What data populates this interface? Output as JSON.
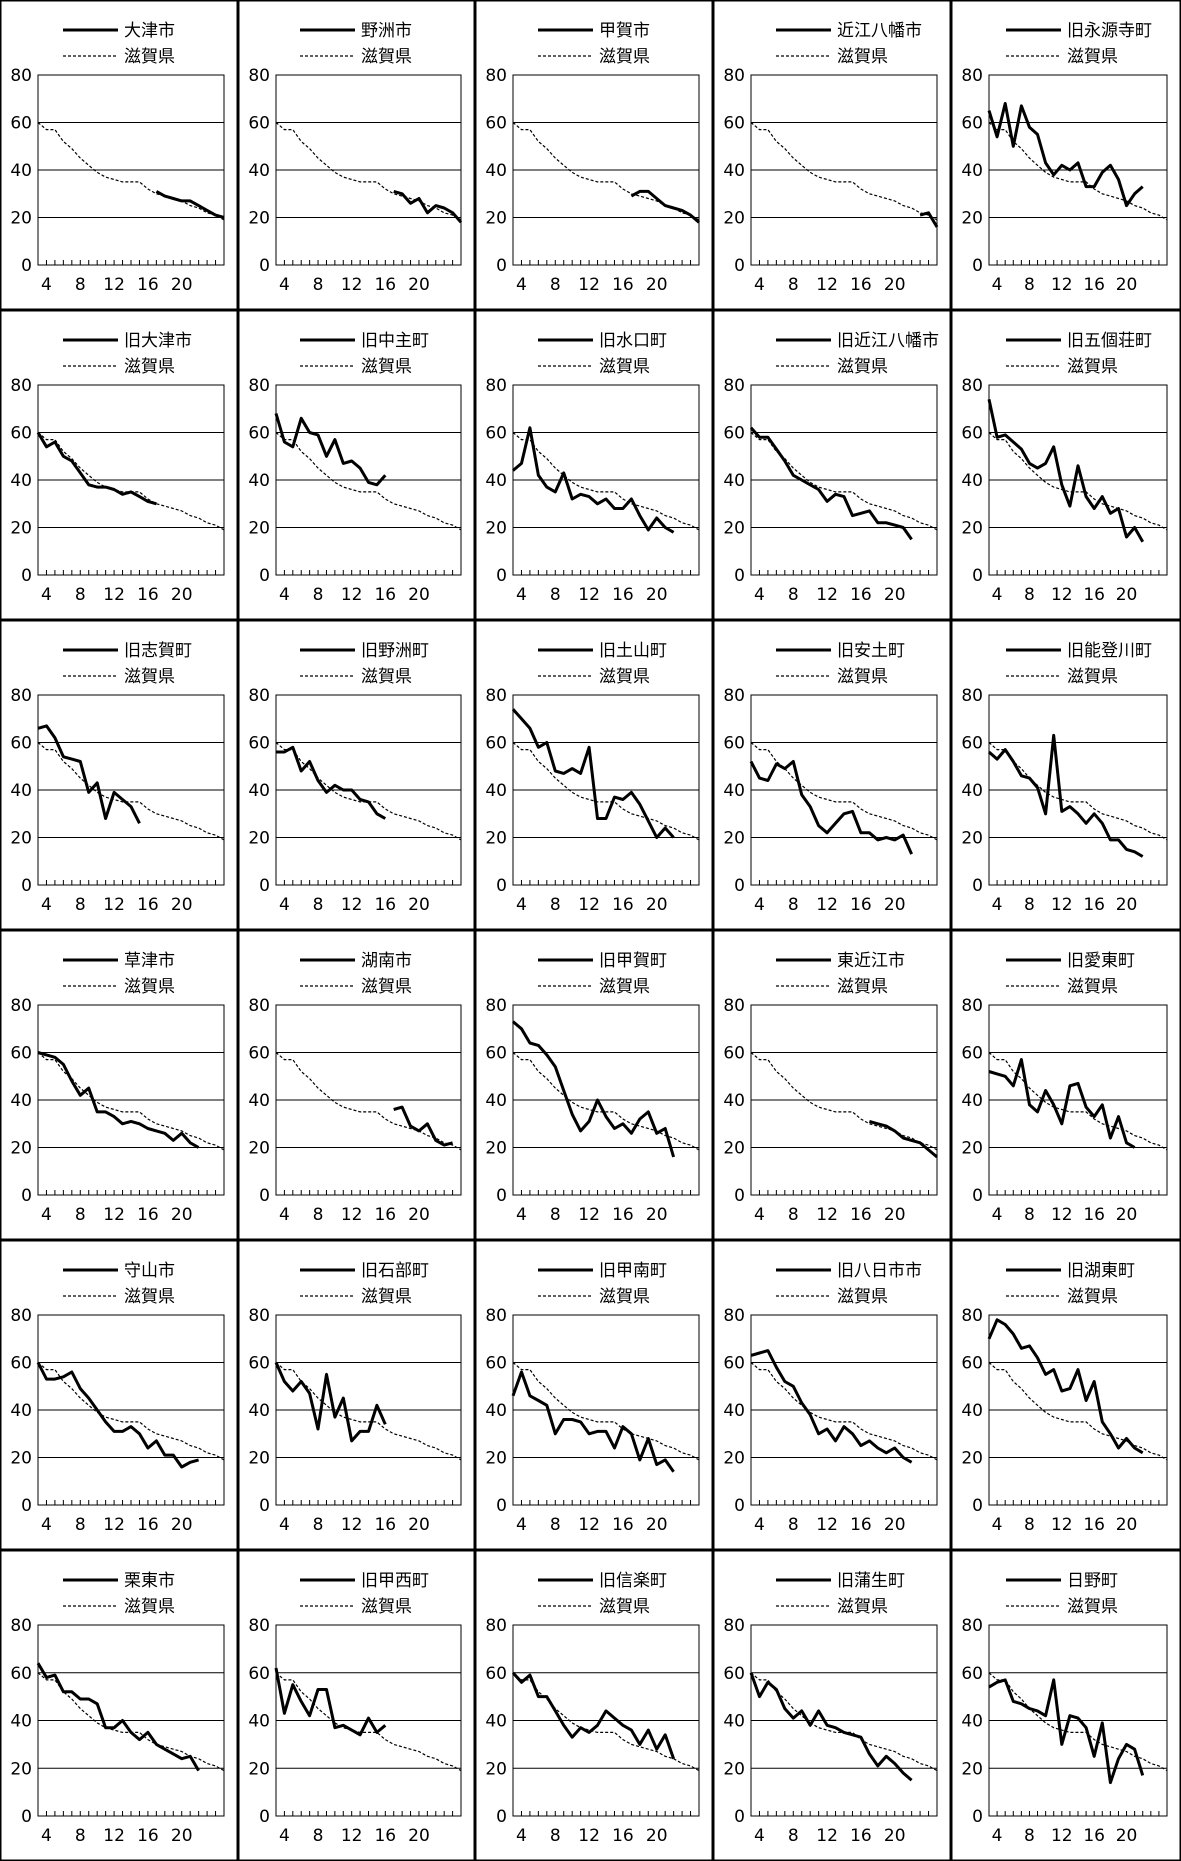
{
  "reference_series_label": "滋賀県",
  "y_ticks": [
    "0",
    "20",
    "40",
    "60",
    "80"
  ],
  "x_ticks": [
    "4",
    "8",
    "12",
    "16",
    "20"
  ],
  "reference_series": [
    60,
    57,
    57,
    52,
    49,
    45,
    42,
    39,
    37,
    36,
    35,
    35,
    35,
    32,
    30,
    29,
    28,
    27,
    25,
    24,
    22,
    21,
    19
  ],
  "chart_data": [
    {
      "type": "line",
      "name": "大津市",
      "x_start": 17,
      "values": [
        31,
        29,
        28,
        27,
        27,
        25,
        23,
        21,
        20
      ]
    },
    {
      "type": "line",
      "name": "野洲市",
      "x_start": 17,
      "values": [
        31,
        30,
        26,
        28,
        22,
        25,
        24,
        22,
        18
      ]
    },
    {
      "type": "line",
      "name": "甲賀市",
      "x_start": 17,
      "values": [
        29,
        31,
        31,
        28,
        25,
        24,
        23,
        21,
        18
      ]
    },
    {
      "type": "line",
      "name": "近江八幡市",
      "x_start": 23,
      "values": [
        21,
        22,
        16
      ]
    },
    {
      "type": "line",
      "name": "旧永源寺町",
      "x_start": 3,
      "values": [
        65,
        54,
        68,
        50,
        67,
        58,
        55,
        43,
        38,
        42,
        40,
        43,
        33,
        33,
        39,
        42,
        36,
        25,
        30,
        33
      ]
    },
    {
      "type": "line",
      "name": "旧大津市",
      "x_start": 3,
      "values": [
        60,
        54,
        56,
        50,
        48,
        43,
        38,
        37,
        37,
        36,
        34,
        35,
        33,
        31,
        30
      ]
    },
    {
      "type": "line",
      "name": "旧中主町",
      "x_start": 3,
      "values": [
        68,
        56,
        54,
        66,
        60,
        59,
        50,
        57,
        47,
        48,
        45,
        39,
        38,
        42
      ]
    },
    {
      "type": "line",
      "name": "旧水口町",
      "x_start": 3,
      "values": [
        44,
        47,
        62,
        42,
        37,
        35,
        43,
        32,
        34,
        33,
        30,
        32,
        28,
        28,
        32,
        25,
        19,
        24,
        20,
        18
      ]
    },
    {
      "type": "line",
      "name": "旧近江八幡市",
      "x_start": 3,
      "values": [
        62,
        58,
        58,
        53,
        48,
        42,
        40,
        38,
        36,
        31,
        34,
        33,
        25,
        26,
        27,
        22,
        22,
        21,
        20,
        15
      ]
    },
    {
      "type": "line",
      "name": "旧五個荘町",
      "x_start": 3,
      "values": [
        74,
        58,
        59,
        56,
        53,
        47,
        45,
        47,
        54,
        38,
        29,
        46,
        33,
        28,
        33,
        26,
        28,
        16,
        20,
        14
      ]
    },
    {
      "type": "line",
      "name": "旧志賀町",
      "x_start": 3,
      "values": [
        66,
        67,
        62,
        54,
        53,
        52,
        39,
        43,
        28,
        39,
        36,
        33,
        26
      ]
    },
    {
      "type": "line",
      "name": "旧野洲町",
      "x_start": 3,
      "values": [
        56,
        56,
        58,
        48,
        52,
        44,
        39,
        42,
        40,
        40,
        36,
        35,
        30,
        28
      ]
    },
    {
      "type": "line",
      "name": "旧土山町",
      "x_start": 3,
      "values": [
        74,
        70,
        66,
        58,
        60,
        48,
        47,
        49,
        47,
        58,
        28,
        28,
        37,
        36,
        39,
        34,
        27,
        20,
        24,
        20
      ]
    },
    {
      "type": "line",
      "name": "旧安土町",
      "x_start": 3,
      "values": [
        52,
        45,
        44,
        51,
        49,
        52,
        38,
        33,
        25,
        22,
        26,
        30,
        31,
        22,
        22,
        19,
        20,
        19,
        21,
        13
      ]
    },
    {
      "type": "line",
      "name": "旧能登川町",
      "x_start": 3,
      "values": [
        56,
        53,
        57,
        52,
        46,
        45,
        41,
        30,
        63,
        31,
        33,
        30,
        26,
        30,
        26,
        19,
        19,
        15,
        14,
        12
      ]
    },
    {
      "type": "line",
      "name": "草津市",
      "x_start": 3,
      "values": [
        60,
        59,
        58,
        55,
        48,
        42,
        45,
        35,
        35,
        33,
        30,
        31,
        30,
        28,
        27,
        26,
        23,
        26,
        22,
        20
      ]
    },
    {
      "type": "line",
      "name": "湖南市",
      "x_start": 17,
      "values": [
        36,
        37,
        29,
        27,
        30,
        23,
        21,
        22
      ]
    },
    {
      "type": "line",
      "name": "旧甲賀町",
      "x_start": 3,
      "values": [
        73,
        70,
        64,
        63,
        59,
        54,
        44,
        34,
        27,
        31,
        40,
        33,
        28,
        30,
        26,
        32,
        35,
        26,
        28,
        16
      ]
    },
    {
      "type": "line",
      "name": "東近江市",
      "x_start": 17,
      "values": [
        31,
        30,
        29,
        27,
        24,
        23,
        22,
        19,
        16
      ]
    },
    {
      "type": "line",
      "name": "旧愛東町",
      "x_start": 3,
      "values": [
        52,
        51,
        50,
        46,
        57,
        38,
        35,
        44,
        38,
        30,
        46,
        47,
        37,
        33,
        38,
        24,
        33,
        22,
        20
      ]
    },
    {
      "type": "line",
      "name": "守山市",
      "x_start": 3,
      "values": [
        60,
        53,
        53,
        54,
        56,
        49,
        45,
        40,
        35,
        31,
        31,
        33,
        30,
        24,
        27,
        21,
        21,
        16,
        18,
        19
      ]
    },
    {
      "type": "line",
      "name": "旧石部町",
      "x_start": 3,
      "values": [
        60,
        52,
        48,
        52,
        47,
        32,
        55,
        37,
        45,
        27,
        31,
        31,
        42,
        34
      ]
    },
    {
      "type": "line",
      "name": "旧甲南町",
      "x_start": 3,
      "values": [
        46,
        56,
        46,
        44,
        42,
        30,
        36,
        36,
        35,
        30,
        31,
        31,
        24,
        33,
        30,
        19,
        28,
        17,
        19,
        14
      ]
    },
    {
      "type": "line",
      "name": "旧八日市市",
      "x_start": 3,
      "values": [
        63,
        64,
        65,
        58,
        52,
        50,
        43,
        38,
        30,
        32,
        27,
        33,
        30,
        25,
        27,
        24,
        22,
        24,
        20,
        18
      ]
    },
    {
      "type": "line",
      "name": "旧湖東町",
      "x_start": 3,
      "values": [
        70,
        78,
        76,
        72,
        66,
        67,
        62,
        55,
        57,
        48,
        49,
        57,
        44,
        52,
        35,
        30,
        24,
        28,
        24,
        22
      ]
    },
    {
      "type": "line",
      "name": "栗東市",
      "x_start": 3,
      "values": [
        64,
        58,
        59,
        52,
        52,
        49,
        49,
        47,
        37,
        37,
        40,
        35,
        32,
        35,
        30,
        28,
        26,
        24,
        25,
        19
      ]
    },
    {
      "type": "line",
      "name": "旧甲西町",
      "x_start": 3,
      "values": [
        62,
        43,
        55,
        48,
        42,
        53,
        53,
        37,
        38,
        36,
        34,
        41,
        35,
        38
      ]
    },
    {
      "type": "line",
      "name": "旧信楽町",
      "x_start": 3,
      "values": [
        60,
        56,
        59,
        50,
        50,
        44,
        38,
        33,
        37,
        35,
        38,
        44,
        41,
        38,
        36,
        30,
        36,
        28,
        34,
        24
      ]
    },
    {
      "type": "line",
      "name": "旧蒲生町",
      "x_start": 3,
      "values": [
        60,
        50,
        56,
        53,
        45,
        41,
        44,
        38,
        44,
        38,
        37,
        35,
        34,
        33,
        26,
        21,
        25,
        22,
        18,
        15
      ]
    },
    {
      "type": "line",
      "name": "日野町",
      "x_start": 3,
      "values": [
        54,
        56,
        57,
        48,
        47,
        45,
        44,
        42,
        57,
        30,
        42,
        41,
        37,
        25,
        39,
        14,
        24,
        30,
        28,
        17
      ]
    }
  ]
}
